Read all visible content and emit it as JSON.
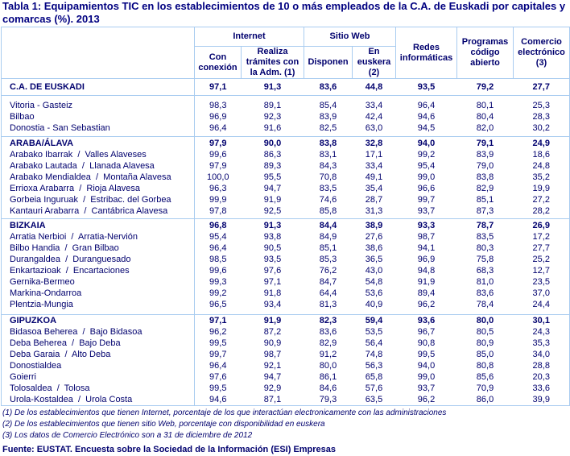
{
  "title": "Tabla 1: Equipamientos TIC en los establecimientos de 10 o más empleados de la C.A. de Euskadi por capitales y comarcas (%). 2013",
  "headers": {
    "internet": "Internet",
    "sitio_web": "Sitio Web",
    "redes": "Redes informáticas",
    "programas": "Programas código abierto",
    "comercio": "Comercio electrónico (3)",
    "con_conexion": "Con conexión",
    "realiza_tramites": "Realiza trámites con la Adm. (1)",
    "disponen": "Disponen",
    "en_euskera": "En euskera (2)"
  },
  "sections": [
    {
      "rows": [
        {
          "name": "C.A. DE EUSKADI",
          "bold": true,
          "values": [
            "97,1",
            "91,3",
            "83,6",
            "44,8",
            "93,5",
            "79,2",
            "27,7"
          ]
        }
      ]
    },
    {
      "rows": [
        {
          "name": "Vitoria - Gasteiz",
          "values": [
            "98,3",
            "89,1",
            "85,4",
            "33,4",
            "96,4",
            "80,1",
            "25,3"
          ]
        },
        {
          "name": "Bilbao",
          "values": [
            "96,9",
            "92,3",
            "83,9",
            "42,4",
            "94,6",
            "80,4",
            "28,3"
          ]
        },
        {
          "name": "Donostia - San Sebastian",
          "values": [
            "96,4",
            "91,6",
            "82,5",
            "63,0",
            "94,5",
            "82,0",
            "30,2"
          ]
        }
      ]
    },
    {
      "rows": [
        {
          "name": "ARABA/ÁLAVA",
          "bold": true,
          "values": [
            "97,9",
            "90,0",
            "83,8",
            "32,8",
            "94,0",
            "79,1",
            "24,9"
          ]
        },
        {
          "name": "Arabako Ibarrak  /  Valles Alaveses",
          "values": [
            "99,6",
            "86,3",
            "83,1",
            "17,1",
            "99,2",
            "83,9",
            "18,6"
          ]
        },
        {
          "name": "Arabako Lautada  /  Llanada Alavesa",
          "values": [
            "97,9",
            "89,3",
            "84,3",
            "33,4",
            "95,4",
            "79,0",
            "24,8"
          ]
        },
        {
          "name": "Arabako Mendialdea  /  Montaña Alavesa",
          "values": [
            "100,0",
            "95,5",
            "70,8",
            "49,1",
            "99,0",
            "83,8",
            "35,2"
          ]
        },
        {
          "name": "Errioxa Arabarra  /  Rioja Alavesa",
          "values": [
            "96,3",
            "94,7",
            "83,5",
            "35,4",
            "96,6",
            "82,9",
            "19,9"
          ]
        },
        {
          "name": "Gorbeia Inguruak  /  Estribac. del Gorbea",
          "values": [
            "99,9",
            "91,9",
            "74,6",
            "28,7",
            "99,7",
            "85,1",
            "27,2"
          ]
        },
        {
          "name": "Kantauri Arabarra  /  Cantábrica Alavesa",
          "values": [
            "97,8",
            "92,5",
            "85,8",
            "31,3",
            "93,7",
            "87,3",
            "28,2"
          ]
        }
      ]
    },
    {
      "rows": [
        {
          "name": "BIZKAIA",
          "bold": true,
          "values": [
            "96,8",
            "91,3",
            "84,4",
            "38,9",
            "93,3",
            "78,7",
            "26,9"
          ]
        },
        {
          "name": "Arratia Nerbioi  /  Arratia-Nervión",
          "values": [
            "95,4",
            "93,8",
            "84,9",
            "27,6",
            "98,7",
            "83,5",
            "17,2"
          ]
        },
        {
          "name": "Bilbo Handia  /  Gran Bilbao",
          "values": [
            "96,4",
            "90,5",
            "85,1",
            "38,6",
            "94,1",
            "80,3",
            "27,7"
          ]
        },
        {
          "name": "Durangaldea  /  Duranguesado",
          "values": [
            "98,5",
            "93,5",
            "85,3",
            "36,5",
            "96,9",
            "75,8",
            "25,2"
          ]
        },
        {
          "name": "Enkartazioak  /  Encartaciones",
          "values": [
            "99,6",
            "97,6",
            "76,2",
            "43,0",
            "94,8",
            "68,3",
            "12,7"
          ]
        },
        {
          "name": "Gernika-Bermeo",
          "values": [
            "99,3",
            "97,1",
            "84,7",
            "54,8",
            "91,9",
            "81,0",
            "23,5"
          ]
        },
        {
          "name": "Markina-Ondarroa",
          "values": [
            "99,2",
            "91,8",
            "64,4",
            "53,6",
            "89,4",
            "83,6",
            "37,0"
          ]
        },
        {
          "name": "Plentzia-Mungia",
          "values": [
            "96,5",
            "93,4",
            "81,3",
            "40,9",
            "96,2",
            "78,4",
            "24,4"
          ]
        }
      ]
    },
    {
      "rows": [
        {
          "name": "GIPUZKOA",
          "bold": true,
          "values": [
            "97,1",
            "91,9",
            "82,3",
            "59,4",
            "93,6",
            "80,0",
            "30,1"
          ]
        },
        {
          "name": "Bidasoa Beherea  /  Bajo Bidasoa",
          "values": [
            "96,2",
            "87,2",
            "83,6",
            "53,5",
            "96,7",
            "80,5",
            "24,3"
          ]
        },
        {
          "name": "Deba Beherea  /  Bajo Deba",
          "values": [
            "99,5",
            "90,9",
            "82,9",
            "56,4",
            "90,8",
            "80,9",
            "35,3"
          ]
        },
        {
          "name": "Deba Garaia  /  Alto Deba",
          "values": [
            "99,7",
            "98,7",
            "91,2",
            "74,8",
            "99,5",
            "85,0",
            "34,0"
          ]
        },
        {
          "name": "Donostialdea",
          "values": [
            "96,4",
            "92,1",
            "80,0",
            "56,3",
            "94,0",
            "80,8",
            "28,8"
          ]
        },
        {
          "name": "Goierri",
          "values": [
            "97,6",
            "94,7",
            "86,1",
            "65,8",
            "99,0",
            "85,6",
            "20,3"
          ]
        },
        {
          "name": "Tolosaldea  /  Tolosa",
          "values": [
            "99,5",
            "92,9",
            "84,6",
            "57,6",
            "93,7",
            "70,9",
            "33,6"
          ]
        },
        {
          "name": "Urola-Kostaldea  /  Urola Costa",
          "values": [
            "94,6",
            "87,1",
            "79,3",
            "63,5",
            "96,2",
            "86,0",
            "39,9"
          ]
        }
      ]
    }
  ],
  "notes": [
    "(1) De los establecimientos que tienen Internet, porcentaje de los que interactúan electronicamente con las administraciones",
    "(2) De los establecimientos que tienen sitio Web, porcentaje con disponibilidad en euskera",
    "(3) Los datos de Comercio Electrónico son a 31 de diciembre de 2012"
  ],
  "source": "Fuente: EUSTAT. Encuesta sobre la Sociedad de la Información (ESI) Empresas"
}
